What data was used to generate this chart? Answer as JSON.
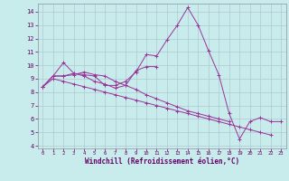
{
  "xlabel": "Windchill (Refroidissement éolien,°C)",
  "background_color": "#c8ecec",
  "grid_color": "#b0c8d0",
  "line_color": "#993399",
  "x_data": [
    0,
    1,
    2,
    3,
    4,
    5,
    6,
    7,
    8,
    9,
    10,
    11,
    12,
    13,
    14,
    15,
    16,
    17,
    18,
    19,
    20,
    21,
    22,
    23
  ],
  "series": [
    [
      8.4,
      9.2,
      9.2,
      9.4,
      9.3,
      9.2,
      8.5,
      8.5,
      8.8,
      9.5,
      10.8,
      10.7,
      11.9,
      13.0,
      14.3,
      13.0,
      11.1,
      9.3,
      6.4,
      4.5,
      5.8,
      6.1,
      5.8,
      5.8
    ],
    [
      8.4,
      9.2,
      10.2,
      9.4,
      9.2,
      8.8,
      8.6,
      8.3,
      8.5,
      9.6,
      9.9,
      9.9,
      null,
      null,
      null,
      null,
      null,
      null,
      null,
      null,
      null,
      null,
      null,
      null
    ],
    [
      8.4,
      9.2,
      9.2,
      9.3,
      9.5,
      9.3,
      9.2,
      8.8,
      8.5,
      8.2,
      7.8,
      7.5,
      7.2,
      6.9,
      6.6,
      6.4,
      6.2,
      6.0,
      5.8,
      null,
      null,
      null,
      null,
      null
    ],
    [
      8.4,
      9.0,
      8.8,
      8.6,
      8.4,
      8.2,
      8.0,
      7.8,
      7.6,
      7.4,
      7.2,
      7.0,
      6.8,
      6.6,
      6.4,
      6.2,
      6.0,
      5.8,
      5.6,
      5.4,
      5.2,
      5.0,
      4.8,
      null
    ]
  ],
  "ylim": [
    3.8,
    14.6
  ],
  "yticks": [
    4,
    5,
    6,
    7,
    8,
    9,
    10,
    11,
    12,
    13,
    14
  ],
  "xlim": [
    -0.5,
    23.5
  ],
  "xticks": [
    0,
    1,
    2,
    3,
    4,
    5,
    6,
    7,
    8,
    9,
    10,
    11,
    12,
    13,
    14,
    15,
    16,
    17,
    18,
    19,
    20,
    21,
    22,
    23
  ]
}
